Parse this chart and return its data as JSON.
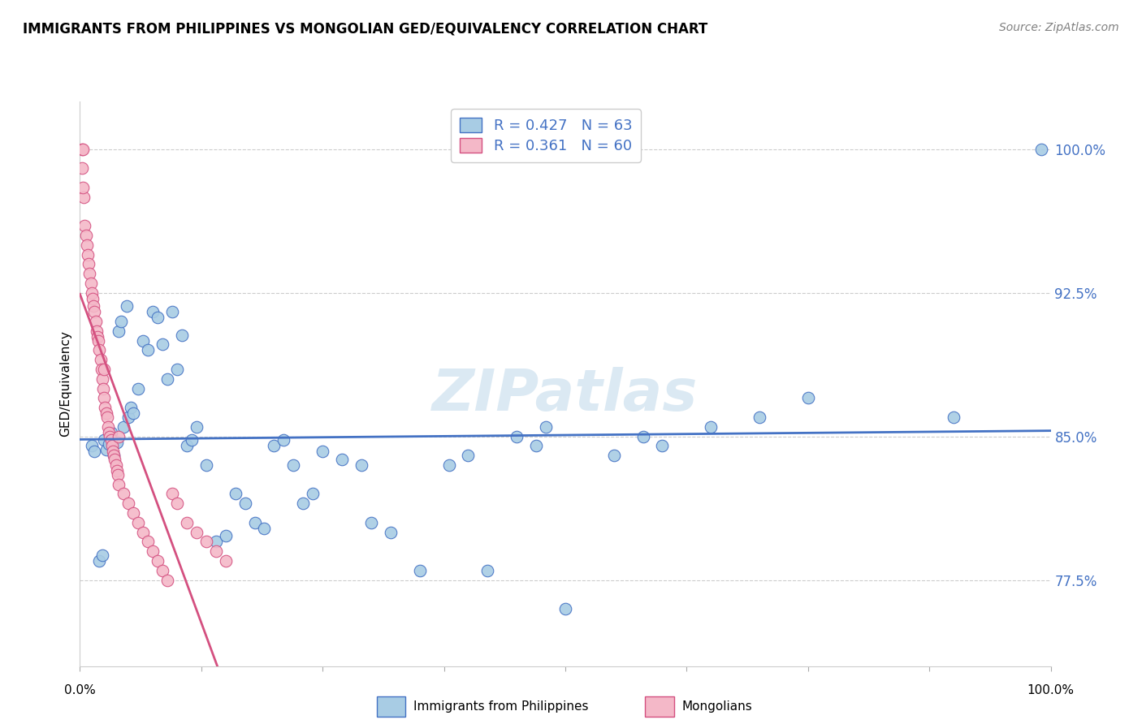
{
  "title": "IMMIGRANTS FROM PHILIPPINES VS MONGOLIAN GED/EQUIVALENCY CORRELATION CHART",
  "source": "Source: ZipAtlas.com",
  "ylabel": "GED/Equivalency",
  "yticks": [
    77.5,
    85.0,
    92.5,
    100.0
  ],
  "ytick_labels": [
    "77.5%",
    "85.0%",
    "92.5%",
    "100.0%"
  ],
  "xrange": [
    0.0,
    100.0
  ],
  "yrange": [
    73.0,
    102.5
  ],
  "legend_label1": "Immigrants from Philippines",
  "legend_label2": "Mongolians",
  "R1": 0.427,
  "N1": 63,
  "R2": 0.361,
  "N2": 60,
  "watermark": "ZIPatlas",
  "blue_color": "#a8cce4",
  "blue_line_color": "#4472c4",
  "pink_color": "#f4b8c8",
  "pink_line_color": "#d45080",
  "philippines_x": [
    1.2,
    1.5,
    2.0,
    2.3,
    2.5,
    2.7,
    3.0,
    3.2,
    3.5,
    3.8,
    4.0,
    4.2,
    4.5,
    4.8,
    5.0,
    5.2,
    5.5,
    6.0,
    6.5,
    7.0,
    7.5,
    8.0,
    8.5,
    9.0,
    9.5,
    10.0,
    10.5,
    11.0,
    11.5,
    12.0,
    13.0,
    14.0,
    15.0,
    16.0,
    17.0,
    18.0,
    19.0,
    20.0,
    21.0,
    22.0,
    23.0,
    24.0,
    25.0,
    27.0,
    29.0,
    30.0,
    32.0,
    35.0,
    38.0,
    40.0,
    42.0,
    45.0,
    47.0,
    48.0,
    50.0,
    55.0,
    58.0,
    60.0,
    65.0,
    70.0,
    75.0,
    90.0,
    99.0
  ],
  "philippines_y": [
    84.5,
    84.2,
    78.5,
    78.8,
    84.8,
    84.3,
    84.6,
    85.2,
    84.0,
    84.7,
    90.5,
    91.0,
    85.5,
    91.8,
    86.0,
    86.5,
    86.2,
    87.5,
    90.0,
    89.5,
    91.5,
    91.2,
    89.8,
    88.0,
    91.5,
    88.5,
    90.3,
    84.5,
    84.8,
    85.5,
    83.5,
    79.5,
    79.8,
    82.0,
    81.5,
    80.5,
    80.2,
    84.5,
    84.8,
    83.5,
    81.5,
    82.0,
    84.2,
    83.8,
    83.5,
    80.5,
    80.0,
    78.0,
    83.5,
    84.0,
    78.0,
    85.0,
    84.5,
    85.5,
    76.0,
    84.0,
    85.0,
    84.5,
    85.5,
    86.0,
    87.0,
    86.0,
    100.0
  ],
  "mongolian_x": [
    0.2,
    0.3,
    0.4,
    0.5,
    0.6,
    0.7,
    0.8,
    0.9,
    1.0,
    1.1,
    1.2,
    1.3,
    1.4,
    1.5,
    1.6,
    1.7,
    1.8,
    1.9,
    2.0,
    2.1,
    2.2,
    2.3,
    2.4,
    2.5,
    2.6,
    2.7,
    2.8,
    2.9,
    3.0,
    3.1,
    3.2,
    3.3,
    3.4,
    3.5,
    3.6,
    3.7,
    3.8,
    3.9,
    4.0,
    4.5,
    5.0,
    5.5,
    6.0,
    6.5,
    7.0,
    7.5,
    8.0,
    8.5,
    9.0,
    9.5,
    10.0,
    11.0,
    12.0,
    13.0,
    14.0,
    15.0,
    0.2,
    0.3,
    2.5,
    4.0
  ],
  "mongolian_y": [
    100.0,
    100.0,
    97.5,
    96.0,
    95.5,
    95.0,
    94.5,
    94.0,
    93.5,
    93.0,
    92.5,
    92.2,
    91.8,
    91.5,
    91.0,
    90.5,
    90.2,
    90.0,
    89.5,
    89.0,
    88.5,
    88.0,
    87.5,
    87.0,
    86.5,
    86.2,
    86.0,
    85.5,
    85.2,
    85.0,
    84.8,
    84.5,
    84.2,
    84.0,
    83.8,
    83.5,
    83.2,
    83.0,
    82.5,
    82.0,
    81.5,
    81.0,
    80.5,
    80.0,
    79.5,
    79.0,
    78.5,
    78.0,
    77.5,
    82.0,
    81.5,
    80.5,
    80.0,
    79.5,
    79.0,
    78.5,
    99.0,
    98.0,
    88.5,
    85.0
  ]
}
